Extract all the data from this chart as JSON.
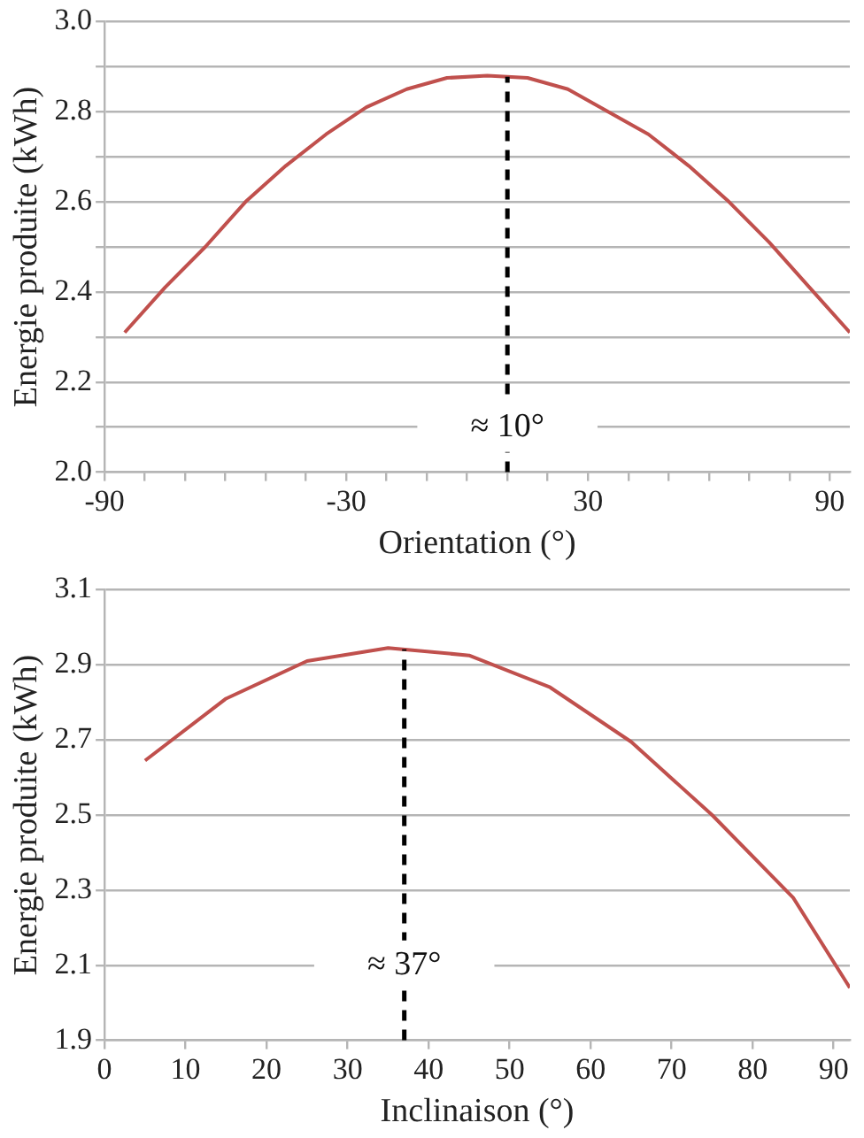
{
  "chart_data": [
    {
      "type": "line",
      "xlabel": "Orientation (°)",
      "ylabel": "Energie produite (kWh)",
      "x": [
        -85,
        -75,
        -65,
        -55,
        -45,
        -35,
        -25,
        -15,
        -5,
        5,
        15,
        25,
        35,
        45,
        55,
        65,
        75,
        85,
        95
      ],
      "series": [
        {
          "color": "#c0504d",
          "values": [
            2.31,
            2.41,
            2.5,
            2.6,
            2.68,
            2.75,
            2.81,
            2.85,
            2.875,
            2.88,
            2.875,
            2.85,
            2.8,
            2.75,
            2.68,
            2.6,
            2.51,
            2.41,
            2.31
          ]
        }
      ],
      "xlim": [
        -90,
        95
      ],
      "xticks": [
        -90,
        {
          "value": -80,
          "label": null
        },
        {
          "value": -70,
          "label": null
        },
        {
          "value": -60,
          "label": null
        },
        {
          "value": -50,
          "label": null
        },
        {
          "value": -40,
          "label": null
        },
        -30,
        {
          "value": -20,
          "label": null
        },
        {
          "value": -10,
          "label": null
        },
        {
          "value": 0,
          "label": null
        },
        {
          "value": 10,
          "label": null
        },
        {
          "value": 20,
          "label": null
        },
        30,
        {
          "value": 40,
          "label": null
        },
        {
          "value": 50,
          "label": null
        },
        {
          "value": 60,
          "label": null
        },
        {
          "value": 70,
          "label": null
        },
        {
          "value": 80,
          "label": null
        },
        90
      ],
      "ylim": [
        2.0,
        3.0
      ],
      "yticks": [
        "2.0",
        {
          "value": 2.1,
          "label": null
        },
        2.2,
        {
          "value": 2.3,
          "label": null
        },
        2.4,
        {
          "value": 2.5,
          "label": null
        },
        2.6,
        {
          "value": 2.7,
          "label": null
        },
        2.8,
        {
          "value": 2.9,
          "label": null
        },
        "3.0"
      ],
      "grid": "y",
      "marker": "none",
      "line_style": "solid",
      "ref_lines": [
        {
          "axis": "x",
          "value": 10,
          "label": "≈ 10°",
          "color": "#000000",
          "line_style": "dashed"
        }
      ]
    },
    {
      "type": "line",
      "xlabel": "Inclinaison (°)",
      "ylabel": "Energie produite (kWh)",
      "x": [
        5,
        15,
        25,
        35,
        45,
        55,
        65,
        75,
        85,
        92
      ],
      "series": [
        {
          "color": "#c0504d",
          "values": [
            2.645,
            2.81,
            2.91,
            2.945,
            2.925,
            2.84,
            2.695,
            2.5,
            2.28,
            2.04
          ]
        }
      ],
      "xlim": [
        0,
        92
      ],
      "xticks": [
        0,
        10,
        20,
        30,
        40,
        50,
        60,
        70,
        80,
        90
      ],
      "ylim": [
        1.9,
        3.1
      ],
      "yticks": [
        1.9,
        2.1,
        2.3,
        2.5,
        2.7,
        2.9,
        3.1
      ],
      "grid": "y",
      "marker": "none",
      "line_style": "solid",
      "ref_lines": [
        {
          "axis": "x",
          "value": 37,
          "label": "≈ 37°",
          "color": "#000000",
          "line_style": "dashed"
        }
      ]
    }
  ]
}
